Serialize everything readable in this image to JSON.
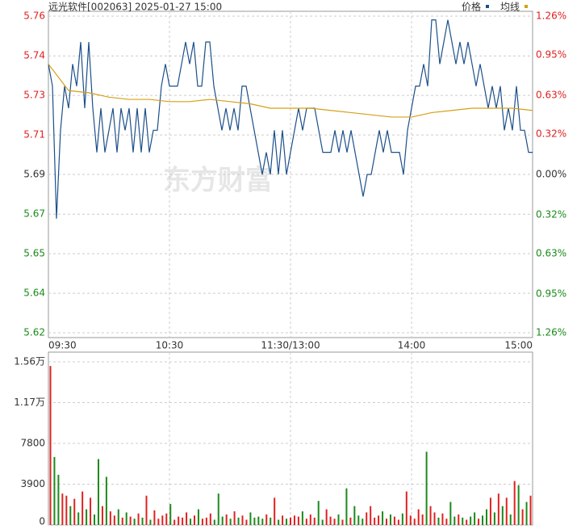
{
  "chart_data": [
    {
      "type": "line",
      "title": "远光软件[002063] 2025-01-27 15:00",
      "watermark": "东方财富",
      "xlim": [
        0,
        240
      ],
      "xticks": [
        {
          "value": 0,
          "label": "09:30"
        },
        {
          "value": 60,
          "label": "10:30"
        },
        {
          "value": 120,
          "label": "11:30/13:00"
        },
        {
          "value": 180,
          "label": "14:00"
        },
        {
          "value": 240,
          "label": "15:00"
        }
      ],
      "ylim": [
        5.6183,
        5.7617
      ],
      "yticks": [
        {
          "value": 5.6183,
          "label": "5.62"
        },
        {
          "value": 5.6362,
          "label": "5.64"
        },
        {
          "value": 5.6541,
          "label": "5.65"
        },
        {
          "value": 5.672,
          "label": "5.67"
        },
        {
          "value": 5.69,
          "label": "5.69"
        },
        {
          "value": 5.7079,
          "label": "5.71"
        },
        {
          "value": 5.7258,
          "label": "5.73"
        },
        {
          "value": 5.7437,
          "label": "5.74"
        },
        {
          "value": 5.7617,
          "label": "5.76"
        }
      ],
      "y2lim": [
        -1.26,
        1.26
      ],
      "y2ticks": [
        {
          "value": -1.26,
          "label": "1.26%"
        },
        {
          "value": -0.95,
          "label": "0.95%"
        },
        {
          "value": -0.63,
          "label": "0.63%"
        },
        {
          "value": -0.32,
          "label": "0.32%"
        },
        {
          "value": 0,
          "label": "0.00%"
        },
        {
          "value": 0.32,
          "label": "0.32%"
        },
        {
          "value": 0.63,
          "label": "0.63%"
        },
        {
          "value": 0.95,
          "label": "0.95%"
        },
        {
          "value": 1.26,
          "label": "1.26%"
        }
      ],
      "grid": true,
      "up_color": "#e02020",
      "down_color": "#1a8a1a",
      "flat_color": "#333333",
      "series": [
        {
          "name": "价格",
          "color": "#1c4f8a",
          "values": [
            5.74,
            5.73,
            5.67,
            5.71,
            5.73,
            5.72,
            5.74,
            5.73,
            5.75,
            5.72,
            5.75,
            5.72,
            5.7,
            5.72,
            5.7,
            5.71,
            5.72,
            5.7,
            5.72,
            5.71,
            5.72,
            5.7,
            5.72,
            5.7,
            5.72,
            5.7,
            5.71,
            5.71,
            5.73,
            5.74,
            5.73,
            5.73,
            5.73,
            5.74,
            5.75,
            5.74,
            5.75,
            5.73,
            5.73,
            5.75,
            5.75,
            5.73,
            5.72,
            5.71,
            5.72,
            5.71,
            5.72,
            5.71,
            5.73,
            5.73,
            5.72,
            5.71,
            5.7,
            5.69,
            5.7,
            5.69,
            5.71,
            5.69,
            5.71,
            5.69,
            5.7,
            5.71,
            5.72,
            5.71,
            5.72,
            5.72,
            5.72,
            5.71,
            5.7,
            5.7,
            5.7,
            5.71,
            5.7,
            5.71,
            5.7,
            5.71,
            5.7,
            5.69,
            5.68,
            5.69,
            5.69,
            5.7,
            5.71,
            5.7,
            5.71,
            5.7,
            5.7,
            5.7,
            5.69,
            5.71,
            5.72,
            5.73,
            5.73,
            5.74,
            5.73,
            5.76,
            5.76,
            5.74,
            5.75,
            5.76,
            5.75,
            5.74,
            5.75,
            5.74,
            5.75,
            5.74,
            5.73,
            5.74,
            5.73,
            5.72,
            5.73,
            5.72,
            5.73,
            5.71,
            5.72,
            5.71,
            5.73,
            5.71,
            5.71,
            5.7,
            5.7
          ]
        },
        {
          "name": "均线",
          "color": "#d4a017",
          "values": [
            5.74,
            5.728,
            5.727,
            5.725,
            5.724,
            5.724,
            5.723,
            5.723,
            5.724,
            5.723,
            5.722,
            5.72,
            5.72,
            5.72,
            5.719,
            5.718,
            5.717,
            5.716,
            5.716,
            5.718,
            5.719,
            5.72,
            5.72,
            5.72,
            5.719
          ]
        }
      ]
    },
    {
      "type": "bar",
      "xlim": [
        0,
        240
      ],
      "ylim": [
        0,
        15600
      ],
      "yticks": [
        0,
        3900,
        7800,
        {
          "value": 11700,
          "label": "1.17万"
        },
        {
          "value": 15600,
          "label": "1.56万"
        }
      ],
      "grid": true,
      "up_color": "#e02020",
      "down_color": "#1a8a1a",
      "values": [
        15200,
        6500,
        4800,
        3000,
        2800,
        1800,
        2500,
        1200,
        3200,
        1500,
        2600,
        1000,
        6300,
        1800,
        4600,
        1300,
        900,
        1500,
        700,
        1200,
        800,
        600,
        1100,
        700,
        2800,
        500,
        1400,
        600,
        900,
        1100,
        2000,
        500,
        800,
        700,
        1200,
        600,
        900,
        1500,
        600,
        700,
        1100,
        500,
        3000,
        800,
        1000,
        600,
        1300,
        700,
        900,
        500,
        1200,
        700,
        800,
        600,
        1000,
        700,
        2600,
        500,
        900,
        600,
        700,
        900,
        800,
        1300,
        600,
        1000,
        700,
        2300,
        500,
        1500,
        800,
        600,
        1000,
        500,
        3500,
        700,
        1800,
        900,
        600,
        1200,
        1800,
        700,
        900,
        1300,
        600,
        1000,
        800,
        500,
        1100,
        3200,
        900,
        600,
        1500,
        1000,
        7000,
        1800,
        1200,
        700,
        1100,
        600,
        2200,
        800,
        1000,
        700,
        500,
        800,
        1200,
        600,
        900,
        1500,
        2600,
        1200,
        3000,
        1800,
        2600,
        1000,
        4200,
        3800,
        1500,
        2200,
        2800
      ]
    }
  ]
}
